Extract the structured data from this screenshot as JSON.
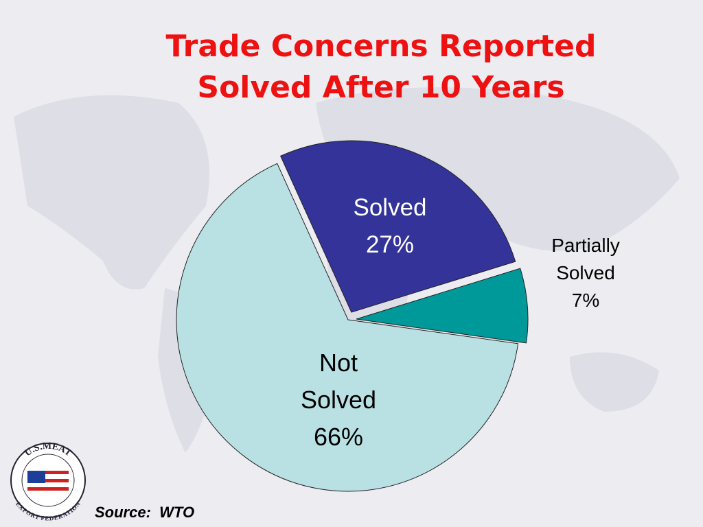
{
  "chart_data": {
    "type": "pie",
    "title": "Trade Concerns Reported Solved After 10 Years",
    "categories": [
      "Solved",
      "Partially Solved",
      "Not Solved"
    ],
    "values": [
      27,
      7,
      66
    ],
    "value_labels": [
      "27%",
      "7%",
      "66%"
    ],
    "colors": [
      "#333399",
      "#009999",
      "#b9e1e4"
    ],
    "source": "Source:  WTO"
  },
  "logo": {
    "top": "U.S.MEAT",
    "bottom": "EXPORT FEDERATION"
  }
}
